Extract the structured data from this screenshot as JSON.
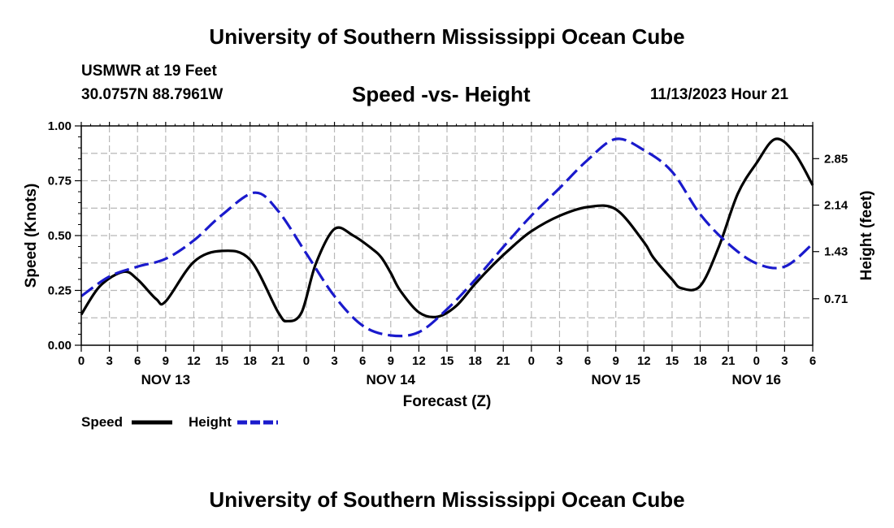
{
  "header": {
    "title": "University of Southern Mississippi Ocean Cube",
    "station": "USMWR at 19 Feet",
    "coords": "30.0757N  88.7961W",
    "subtitle": "Speed -vs- Height",
    "datetime": "11/13/2023 Hour 21"
  },
  "footer": {
    "title": "University of Southern Mississippi Ocean Cube"
  },
  "legend": {
    "speed_label": "Speed",
    "height_label": "Height"
  },
  "colors": {
    "speed": "#000000",
    "height": "#1a1acc",
    "grid": "#b8b8b8"
  },
  "chart_data": {
    "type": "line",
    "title": "Speed -vs- Height",
    "xlabel": "Forecast (Z)",
    "ylabel_left": "Speed (Knots)",
    "ylabel_right": "Height (feet)",
    "x_range_hours": [
      0,
      78
    ],
    "x_tick_labels": [
      "0",
      "3",
      "6",
      "9",
      "12",
      "15",
      "18",
      "21",
      "0",
      "3",
      "6",
      "9",
      "12",
      "15",
      "18",
      "21",
      "0",
      "3",
      "6",
      "9",
      "12",
      "15",
      "18",
      "21",
      "0",
      "3",
      "6"
    ],
    "day_labels": [
      {
        "label": "NOV 13",
        "hour": 9
      },
      {
        "label": "NOV 14",
        "hour": 33
      },
      {
        "label": "NOV 15",
        "hour": 57
      },
      {
        "label": "NOV 16",
        "hour": 72
      }
    ],
    "y_left": {
      "range": [
        0,
        1
      ],
      "ticks": [
        "0.00",
        "0.25",
        "0.50",
        "0.75",
        "1.00"
      ]
    },
    "y_right": {
      "range": [
        0,
        3.35
      ],
      "ticks": [
        "0.71",
        "1.43",
        "2.14",
        "2.85"
      ]
    },
    "grid": true,
    "legend_position": "bottom-left",
    "series": [
      {
        "name": "Speed",
        "axis": "left",
        "style": "solid",
        "x": [
          0,
          2,
          4.5,
          6,
          8,
          9,
          12,
          15,
          18,
          21,
          22,
          23.5,
          25,
          27,
          29,
          31,
          32,
          33,
          34,
          36,
          38,
          40,
          42,
          44,
          46,
          48,
          51,
          54,
          57,
          60,
          61,
          63,
          64,
          66,
          68,
          70,
          72,
          74,
          76,
          78
        ],
        "y": [
          0.14,
          0.27,
          0.335,
          0.3,
          0.21,
          0.2,
          0.38,
          0.43,
          0.39,
          0.15,
          0.11,
          0.15,
          0.37,
          0.53,
          0.5,
          0.44,
          0.4,
          0.33,
          0.25,
          0.15,
          0.13,
          0.18,
          0.28,
          0.37,
          0.45,
          0.52,
          0.59,
          0.63,
          0.62,
          0.47,
          0.4,
          0.3,
          0.26,
          0.27,
          0.45,
          0.69,
          0.83,
          0.94,
          0.88,
          0.73
        ]
      },
      {
        "name": "Height",
        "axis": "right",
        "style": "dashed",
        "x": [
          0,
          3,
          6,
          9,
          12,
          15,
          18.5,
          21,
          24,
          27,
          30,
          33,
          36,
          39,
          42,
          45,
          48,
          51,
          54,
          57,
          60,
          63,
          66,
          69,
          72,
          75,
          78
        ],
        "y": [
          0.75,
          1.05,
          1.2,
          1.32,
          1.6,
          1.99,
          2.33,
          2.05,
          1.4,
          0.75,
          0.3,
          0.15,
          0.2,
          0.55,
          1.0,
          1.5,
          1.98,
          2.4,
          2.83,
          3.15,
          2.98,
          2.65,
          2.0,
          1.55,
          1.25,
          1.2,
          1.55
        ]
      }
    ]
  }
}
